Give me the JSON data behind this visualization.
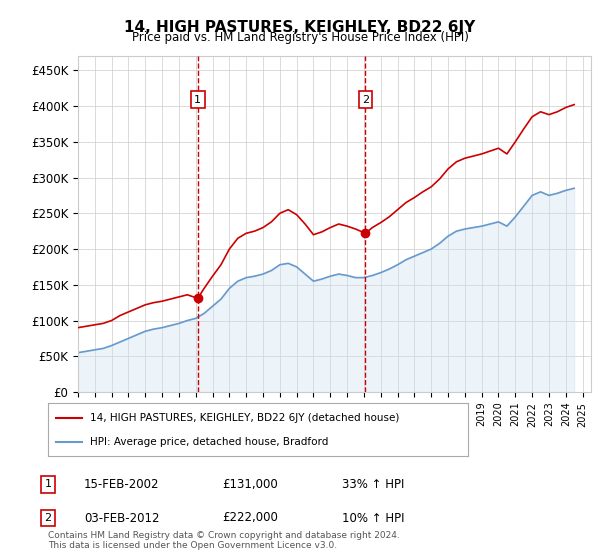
{
  "title": "14, HIGH PASTURES, KEIGHLEY, BD22 6JY",
  "subtitle": "Price paid vs. HM Land Registry's House Price Index (HPI)",
  "ylabel_ticks": [
    "£0",
    "£50K",
    "£100K",
    "£150K",
    "£200K",
    "£250K",
    "£300K",
    "£350K",
    "£400K",
    "£450K"
  ],
  "ytick_values": [
    0,
    50000,
    100000,
    150000,
    200000,
    250000,
    300000,
    350000,
    400000,
    450000
  ],
  "ylim": [
    0,
    470000
  ],
  "xlim_start": 1995.0,
  "xlim_end": 2025.5,
  "purchase1": {
    "date_label": "15-FEB-2002",
    "x": 2002.12,
    "price": 131000,
    "label": "1",
    "pct": "33%",
    "dir": "↑"
  },
  "purchase2": {
    "date_label": "03-FEB-2012",
    "x": 2012.09,
    "price": 222000,
    "label": "2",
    "pct": "10%",
    "dir": "↑"
  },
  "red_line_color": "#cc0000",
  "blue_line_color": "#6699cc",
  "blue_fill_color": "#cce0f0",
  "dashed_line_color": "#cc0000",
  "background_color": "#eaf3fb",
  "plot_bg_color": "#ffffff",
  "grid_color": "#cccccc",
  "legend1_label": "14, HIGH PASTURES, KEIGHLEY, BD22 6JY (detached house)",
  "legend2_label": "HPI: Average price, detached house, Bradford",
  "footer": "Contains HM Land Registry data © Crown copyright and database right 2024.\nThis data is licensed under the Open Government Licence v3.0.",
  "hpi_years": [
    1995.0,
    1995.5,
    1996.0,
    1996.5,
    1997.0,
    1997.5,
    1998.0,
    1998.5,
    1999.0,
    1999.5,
    2000.0,
    2000.5,
    2001.0,
    2001.5,
    2002.0,
    2002.5,
    2003.0,
    2003.5,
    2004.0,
    2004.5,
    2005.0,
    2005.5,
    2006.0,
    2006.5,
    2007.0,
    2007.5,
    2008.0,
    2008.5,
    2009.0,
    2009.5,
    2010.0,
    2010.5,
    2011.0,
    2011.5,
    2012.0,
    2012.5,
    2013.0,
    2013.5,
    2014.0,
    2014.5,
    2015.0,
    2015.5,
    2016.0,
    2016.5,
    2017.0,
    2017.5,
    2018.0,
    2018.5,
    2019.0,
    2019.5,
    2020.0,
    2020.5,
    2021.0,
    2021.5,
    2022.0,
    2022.5,
    2023.0,
    2023.5,
    2024.0,
    2024.5
  ],
  "hpi_values": [
    55000,
    57000,
    59000,
    61000,
    65000,
    70000,
    75000,
    80000,
    85000,
    88000,
    90000,
    93000,
    96000,
    100000,
    103000,
    110000,
    120000,
    130000,
    145000,
    155000,
    160000,
    162000,
    165000,
    170000,
    178000,
    180000,
    175000,
    165000,
    155000,
    158000,
    162000,
    165000,
    163000,
    160000,
    160000,
    163000,
    167000,
    172000,
    178000,
    185000,
    190000,
    195000,
    200000,
    208000,
    218000,
    225000,
    228000,
    230000,
    232000,
    235000,
    238000,
    232000,
    245000,
    260000,
    275000,
    280000,
    275000,
    278000,
    282000,
    285000
  ],
  "prop_years": [
    1995.0,
    1995.5,
    1996.0,
    1996.5,
    1997.0,
    1997.5,
    1998.0,
    1998.5,
    1999.0,
    1999.5,
    2000.0,
    2000.5,
    2001.0,
    2001.5,
    2002.12,
    2002.5,
    2003.0,
    2003.5,
    2004.0,
    2004.5,
    2005.0,
    2005.5,
    2006.0,
    2006.5,
    2007.0,
    2007.5,
    2008.0,
    2008.5,
    2009.0,
    2009.5,
    2010.0,
    2010.5,
    2011.0,
    2011.5,
    2012.09,
    2012.5,
    2013.0,
    2013.5,
    2014.0,
    2014.5,
    2015.0,
    2015.5,
    2016.0,
    2016.5,
    2017.0,
    2017.5,
    2018.0,
    2018.5,
    2019.0,
    2019.5,
    2020.0,
    2020.5,
    2021.0,
    2021.5,
    2022.0,
    2022.5,
    2023.0,
    2023.5,
    2024.0,
    2024.5
  ],
  "prop_values": [
    90000,
    92000,
    94000,
    96000,
    100000,
    107000,
    112000,
    117000,
    122000,
    125000,
    127000,
    130000,
    133000,
    136000,
    131000,
    145000,
    162000,
    178000,
    200000,
    215000,
    222000,
    225000,
    230000,
    238000,
    250000,
    255000,
    248000,
    235000,
    220000,
    224000,
    230000,
    235000,
    232000,
    228000,
    222000,
    230000,
    237000,
    245000,
    255000,
    265000,
    272000,
    280000,
    287000,
    298000,
    312000,
    322000,
    327000,
    330000,
    333000,
    337000,
    341000,
    333000,
    350000,
    368000,
    385000,
    392000,
    388000,
    392000,
    398000,
    402000
  ]
}
